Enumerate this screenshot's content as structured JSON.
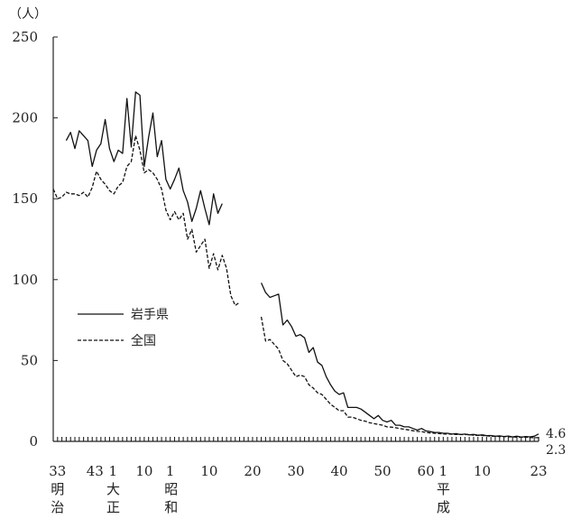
{
  "chart_data": {
    "type": "line",
    "unit_label": "（人）",
    "y_ticks": [
      0,
      50,
      100,
      150,
      200,
      250
    ],
    "ylim": [
      0,
      250
    ],
    "xlim": [
      1900,
      2011
    ],
    "x_tick_labels": [
      {
        "year": 1900,
        "label": "33"
      },
      {
        "year": 1910,
        "label": "43"
      },
      {
        "year": 1912,
        "label": "1"
      },
      {
        "year": 1920,
        "label": "10"
      },
      {
        "year": 1926,
        "label": "1"
      },
      {
        "year": 1935,
        "label": "10"
      },
      {
        "year": 1945,
        "label": "20"
      },
      {
        "year": 1955,
        "label": "30"
      },
      {
        "year": 1965,
        "label": "40"
      },
      {
        "year": 1975,
        "label": "50"
      },
      {
        "year": 1985,
        "label": "60"
      },
      {
        "year": 1989,
        "label": "1"
      },
      {
        "year": 1998,
        "label": "10"
      },
      {
        "year": 2011,
        "label": "23"
      }
    ],
    "era_labels": [
      {
        "year": 1900,
        "chars": [
          "明",
          "治"
        ]
      },
      {
        "year": 1912,
        "chars": [
          "大",
          "正"
        ]
      },
      {
        "year": 1926,
        "chars": [
          "昭",
          "和"
        ]
      },
      {
        "year": 1989,
        "chars": [
          "平",
          "成"
        ]
      }
    ],
    "end_labels": {
      "iwate": "4.6",
      "national": "2.3"
    },
    "legend_position": "left-middle",
    "series": [
      {
        "name": "岩手県",
        "style": "solid",
        "color": "#111111",
        "segments": [
          [
            [
              1902,
              186
            ],
            [
              1903,
              191
            ],
            [
              1904,
              181
            ],
            [
              1905,
              192
            ],
            [
              1906,
              189
            ],
            [
              1907,
              186
            ],
            [
              1908,
              170
            ],
            [
              1909,
              180
            ],
            [
              1910,
              184
            ],
            [
              1911,
              199
            ],
            [
              1912,
              181
            ],
            [
              1913,
              173
            ],
            [
              1914,
              180
            ],
            [
              1915,
              178
            ],
            [
              1916,
              212
            ],
            [
              1917,
              182
            ],
            [
              1918,
              216
            ],
            [
              1919,
              214
            ],
            [
              1920,
              170
            ],
            [
              1921,
              188
            ],
            [
              1922,
              203
            ],
            [
              1923,
              176
            ],
            [
              1924,
              186
            ],
            [
              1925,
              162
            ],
            [
              1926,
              156
            ],
            [
              1927,
              162
            ],
            [
              1928,
              169
            ],
            [
              1929,
              155
            ],
            [
              1930,
              148
            ],
            [
              1931,
              136
            ],
            [
              1932,
              144
            ],
            [
              1933,
              155
            ],
            [
              1934,
              144
            ],
            [
              1935,
              134
            ],
            [
              1936,
              153
            ],
            [
              1937,
              141
            ],
            [
              1938,
              147
            ]
          ],
          [
            [
              1947,
              98
            ],
            [
              1948,
              92
            ],
            [
              1949,
              89
            ],
            [
              1950,
              90
            ],
            [
              1951,
              91
            ],
            [
              1952,
              72
            ],
            [
              1953,
              75
            ],
            [
              1954,
              71
            ],
            [
              1955,
              65
            ],
            [
              1956,
              66
            ],
            [
              1957,
              64
            ],
            [
              1958,
              55
            ],
            [
              1959,
              58
            ],
            [
              1960,
              49
            ],
            [
              1961,
              47
            ],
            [
              1962,
              40
            ],
            [
              1963,
              35
            ],
            [
              1964,
              31
            ],
            [
              1965,
              29
            ],
            [
              1966,
              30
            ],
            [
              1967,
              21
            ],
            [
              1968,
              21
            ],
            [
              1969,
              21
            ],
            [
              1970,
              20
            ],
            [
              1971,
              18
            ],
            [
              1972,
              16
            ],
            [
              1973,
              14
            ],
            [
              1974,
              16
            ],
            [
              1975,
              13
            ],
            [
              1976,
              12
            ],
            [
              1977,
              13
            ],
            [
              1978,
              10
            ],
            [
              1979,
              10
            ],
            [
              1980,
              9
            ],
            [
              1981,
              9
            ],
            [
              1982,
              8
            ],
            [
              1983,
              7
            ],
            [
              1984,
              8
            ],
            [
              1985,
              6.5
            ],
            [
              1986,
              6
            ],
            [
              1987,
              5.5
            ],
            [
              1988,
              5.5
            ],
            [
              1989,
              5
            ],
            [
              1990,
              5
            ],
            [
              1991,
              4.5
            ],
            [
              1992,
              4.8
            ],
            [
              1993,
              4.2
            ],
            [
              1994,
              4.5
            ],
            [
              1995,
              4
            ],
            [
              1996,
              4.3
            ],
            [
              1997,
              3.8
            ],
            [
              1998,
              4
            ],
            [
              1999,
              3.5
            ],
            [
              2000,
              3.6
            ],
            [
              2001,
              3.2
            ],
            [
              2002,
              3.4
            ],
            [
              2003,
              3
            ],
            [
              2004,
              3.3
            ],
            [
              2005,
              2.8
            ],
            [
              2006,
              3.2
            ],
            [
              2007,
              2.6
            ],
            [
              2008,
              3
            ],
            [
              2009,
              2.8
            ],
            [
              2010,
              3.2
            ],
            [
              2011,
              4.6
            ]
          ]
        ]
      },
      {
        "name": "全国",
        "style": "dashed",
        "color": "#111111",
        "segments": [
          [
            [
              1899,
              156
            ],
            [
              1900,
              150
            ],
            [
              1901,
              151
            ],
            [
              1902,
              154
            ],
            [
              1903,
              153
            ],
            [
              1904,
              153
            ],
            [
              1905,
              152
            ],
            [
              1906,
              154
            ],
            [
              1907,
              151
            ],
            [
              1908,
              157
            ],
            [
              1909,
              167
            ],
            [
              1910,
              162
            ],
            [
              1911,
              159
            ],
            [
              1912,
              155
            ],
            [
              1913,
              153
            ],
            [
              1914,
              158
            ],
            [
              1915,
              160
            ],
            [
              1916,
              170
            ],
            [
              1917,
              173
            ],
            [
              1918,
              189
            ],
            [
              1919,
              180
            ],
            [
              1920,
              166
            ],
            [
              1921,
              168
            ],
            [
              1922,
              166
            ],
            [
              1923,
              162
            ],
            [
              1924,
              156
            ],
            [
              1925,
              143
            ],
            [
              1926,
              137
            ],
            [
              1927,
              142
            ],
            [
              1928,
              137
            ],
            [
              1929,
              141
            ],
            [
              1930,
              125
            ],
            [
              1931,
              131
            ],
            [
              1932,
              117
            ],
            [
              1933,
              121
            ],
            [
              1934,
              125
            ],
            [
              1935,
              107
            ],
            [
              1936,
              116
            ],
            [
              1937,
              106
            ],
            [
              1938,
              115
            ],
            [
              1939,
              107
            ],
            [
              1940,
              90
            ],
            [
              1941,
              84
            ],
            [
              1942,
              86
            ]
          ],
          [
            [
              1947,
              77
            ],
            [
              1948,
              62
            ],
            [
              1949,
              63
            ],
            [
              1950,
              60
            ],
            [
              1951,
              57
            ],
            [
              1952,
              50
            ],
            [
              1953,
              48
            ],
            [
              1954,
              44
            ],
            [
              1955,
              40
            ],
            [
              1956,
              41
            ],
            [
              1957,
              40
            ],
            [
              1958,
              35
            ],
            [
              1959,
              33
            ],
            [
              1960,
              30
            ],
            [
              1961,
              29
            ],
            [
              1962,
              26
            ],
            [
              1963,
              23
            ],
            [
              1964,
              21
            ],
            [
              1965,
              19
            ],
            [
              1966,
              19
            ],
            [
              1967,
              15
            ],
            [
              1968,
              15
            ],
            [
              1969,
              14
            ],
            [
              1970,
              13
            ],
            [
              1971,
              12.5
            ],
            [
              1972,
              11.5
            ],
            [
              1973,
              11
            ],
            [
              1974,
              10.5
            ],
            [
              1975,
              10
            ],
            [
              1976,
              9
            ],
            [
              1977,
              8.8
            ],
            [
              1978,
              8.4
            ],
            [
              1979,
              7.9
            ],
            [
              1980,
              7.5
            ],
            [
              1981,
              7.1
            ],
            [
              1982,
              6.6
            ],
            [
              1983,
              6.2
            ],
            [
              1984,
              6
            ],
            [
              1985,
              5.5
            ],
            [
              1986,
              5.2
            ],
            [
              1987,
              5
            ],
            [
              1988,
              4.8
            ],
            [
              1989,
              4.6
            ],
            [
              1990,
              4.6
            ],
            [
              1991,
              4.4
            ],
            [
              1992,
              4.3
            ],
            [
              1993,
              4.3
            ],
            [
              1994,
              4.2
            ],
            [
              1995,
              4.3
            ],
            [
              1996,
              3.8
            ],
            [
              1997,
              3.7
            ],
            [
              1998,
              3.6
            ],
            [
              1999,
              3.4
            ],
            [
              2000,
              3.2
            ],
            [
              2001,
              3.1
            ],
            [
              2002,
              3
            ],
            [
              2003,
              3
            ],
            [
              2004,
              2.8
            ],
            [
              2005,
              2.8
            ],
            [
              2006,
              2.6
            ],
            [
              2007,
              2.6
            ],
            [
              2008,
              2.6
            ],
            [
              2009,
              2.4
            ],
            [
              2010,
              2.3
            ],
            [
              2011,
              2.3
            ]
          ]
        ]
      }
    ]
  }
}
